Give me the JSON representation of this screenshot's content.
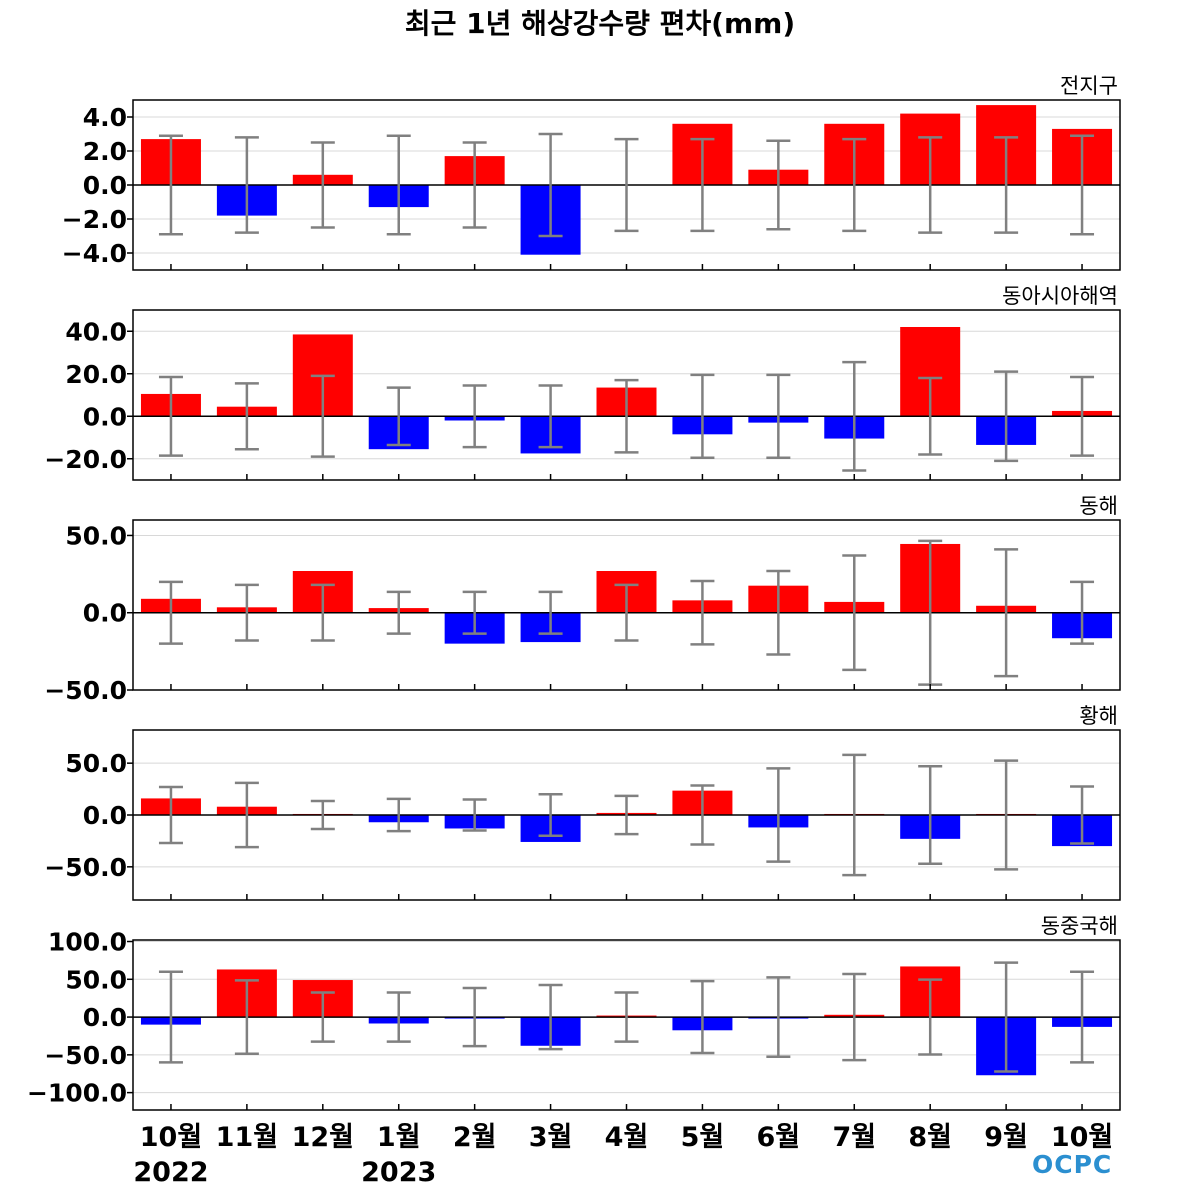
{
  "title": "최근 1년 해상강수량 편차(mm)",
  "logo_text": "OCPC",
  "colors": {
    "positive": "#ff0000",
    "negative": "#0000ff",
    "errorbar": "#808080",
    "zero_line": "#000000",
    "grid": "#d8d8d8"
  },
  "chart_data": [
    {
      "type": "bar",
      "region": "전지구",
      "categories": [
        "10월",
        "11월",
        "12월",
        "1월",
        "2월",
        "3월",
        "4월",
        "5월",
        "6월",
        "7월",
        "8월",
        "9월",
        "10월"
      ],
      "year_labels": [
        {
          "index": 0,
          "text": "2022"
        },
        {
          "index": 3,
          "text": "2023"
        }
      ],
      "values": [
        2.7,
        -1.8,
        0.6,
        -1.3,
        1.7,
        -4.1,
        0.0,
        3.6,
        0.9,
        3.6,
        4.2,
        4.7,
        3.3
      ],
      "error": [
        2.9,
        2.8,
        2.5,
        2.9,
        2.5,
        3.0,
        2.7,
        2.7,
        2.6,
        2.7,
        2.8,
        2.8,
        2.9
      ],
      "ylim": [
        -5.0,
        5.0
      ],
      "yticks": [
        -4.0,
        -2.0,
        0.0,
        2.0,
        4.0
      ],
      "ytick_labels": [
        "−4.0",
        "−2.0",
        "0.0",
        "2.0",
        "4.0"
      ]
    },
    {
      "type": "bar",
      "region": "동아시아해역",
      "categories": [
        "10월",
        "11월",
        "12월",
        "1월",
        "2월",
        "3월",
        "4월",
        "5월",
        "6월",
        "7월",
        "8월",
        "9월",
        "10월"
      ],
      "values": [
        10.5,
        4.5,
        38.5,
        -15.5,
        -2.0,
        -17.5,
        13.5,
        -8.5,
        -3.0,
        -10.5,
        42.0,
        -13.5,
        2.5
      ],
      "error": [
        18.5,
        15.5,
        19.0,
        13.5,
        14.5,
        14.5,
        17.0,
        19.5,
        19.5,
        25.5,
        18.0,
        21.0,
        18.5
      ],
      "ylim": [
        -30.0,
        50.0
      ],
      "yticks": [
        -20.0,
        0.0,
        20.0,
        40.0
      ],
      "ytick_labels": [
        "−20.0",
        "0.0",
        "20.0",
        "40.0"
      ]
    },
    {
      "type": "bar",
      "region": "동해",
      "categories": [
        "10월",
        "11월",
        "12월",
        "1월",
        "2월",
        "3월",
        "4월",
        "5월",
        "6월",
        "7월",
        "8월",
        "9월",
        "10월"
      ],
      "values": [
        9.0,
        3.5,
        27.0,
        3.0,
        -20.0,
        -19.0,
        27.0,
        8.0,
        17.5,
        7.0,
        44.5,
        4.5,
        -16.5
      ],
      "error": [
        20.0,
        18.0,
        18.0,
        13.5,
        13.5,
        13.5,
        18.0,
        20.5,
        27.0,
        37.0,
        46.5,
        41.0,
        20.0
      ],
      "ylim": [
        -50.0,
        60.0
      ],
      "yticks": [
        -50.0,
        0.0,
        50.0
      ],
      "ytick_labels": [
        "−50.0",
        "0.0",
        "50.0"
      ]
    },
    {
      "type": "bar",
      "region": "황해",
      "categories": [
        "10월",
        "11월",
        "12월",
        "1월",
        "2월",
        "3월",
        "4월",
        "5월",
        "6월",
        "7월",
        "8월",
        "9월",
        "10월"
      ],
      "values": [
        16.0,
        8.0,
        1.0,
        -7.0,
        -13.0,
        -26.0,
        2.0,
        23.5,
        -12.0,
        1.0,
        -23.0,
        1.0,
        -30.0
      ],
      "error": [
        27.0,
        31.0,
        13.5,
        15.5,
        15.0,
        20.0,
        18.5,
        28.5,
        45.0,
        58.0,
        47.0,
        52.5,
        27.5
      ],
      "ylim": [
        -82.0,
        82.0
      ],
      "yticks": [
        -50.0,
        0.0,
        50.0
      ],
      "ytick_labels": [
        "−50.0",
        "0.0",
        "50.0"
      ]
    },
    {
      "type": "bar",
      "region": "동중국해",
      "categories": [
        "10월",
        "11월",
        "12월",
        "1월",
        "2월",
        "3월",
        "4월",
        "5월",
        "6월",
        "7월",
        "8월",
        "9월",
        "10월"
      ],
      "values": [
        -10.0,
        63.0,
        49.0,
        -8.5,
        -1.0,
        -38.0,
        2.0,
        -17.5,
        -1.0,
        3.0,
        67.0,
        -77.0,
        -13.0
      ],
      "error": [
        60.0,
        48.5,
        32.5,
        32.5,
        38.5,
        42.5,
        32.5,
        47.5,
        52.5,
        57.0,
        49.5,
        72.0,
        60.0
      ],
      "ylim": [
        -123.0,
        102.0
      ],
      "yticks": [
        -100.0,
        -50.0,
        0.0,
        50.0,
        100.0
      ],
      "ytick_labels": [
        "−100.0",
        "−50.0",
        "0.0",
        "50.0",
        "100.0"
      ]
    }
  ]
}
